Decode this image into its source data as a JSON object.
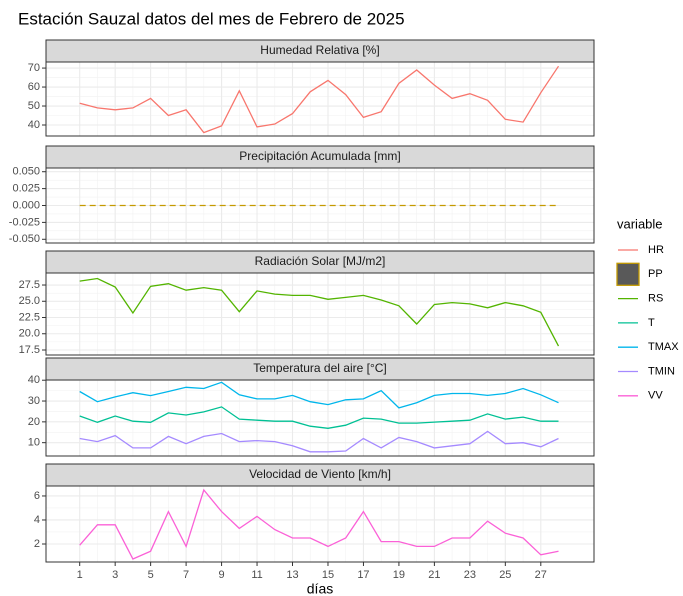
{
  "title": "Estación Sauzal datos del mes de Febrero de 2025",
  "legend_title": "variable",
  "chart_data": [
    {
      "type": "line",
      "title": "Humedad Relativa [%]",
      "x": [
        1,
        2,
        3,
        4,
        5,
        6,
        7,
        8,
        9,
        10,
        11,
        12,
        13,
        14,
        15,
        16,
        17,
        18,
        19,
        20,
        21,
        22,
        23,
        24,
        25,
        26,
        27,
        28
      ],
      "xlim": [
        -0.9,
        30
      ],
      "xticks": [
        1,
        3,
        5,
        7,
        9,
        11,
        13,
        15,
        17,
        19,
        21,
        23,
        25,
        27
      ],
      "ylim": [
        34.2,
        73.2
      ],
      "yticks": [
        40,
        50,
        60,
        70
      ],
      "grid": true,
      "series": [
        {
          "name": "HR",
          "color": "#F8766D",
          "values": [
            51.5,
            49,
            48,
            49,
            54,
            45,
            48,
            36,
            39.5,
            58,
            39,
            40.5,
            46,
            57.5,
            63.5,
            56,
            44,
            47,
            62,
            69,
            61,
            54,
            56.5,
            53,
            43,
            41.5,
            57,
            71
          ]
        }
      ]
    },
    {
      "type": "line",
      "title": "Precipitación Acumulada [mm]",
      "x": [
        1,
        2,
        3,
        4,
        5,
        6,
        7,
        8,
        9,
        10,
        11,
        12,
        13,
        14,
        15,
        16,
        17,
        18,
        19,
        20,
        21,
        22,
        23,
        24,
        25,
        26,
        27,
        28
      ],
      "xlim": [
        -0.9,
        30
      ],
      "xticks": [
        1,
        3,
        5,
        7,
        9,
        11,
        13,
        15,
        17,
        19,
        21,
        23,
        25,
        27
      ],
      "ylim": [
        -0.0555,
        0.0555
      ],
      "yticks": [
        {
          "value": -0.05,
          "label": "-0.050"
        },
        {
          "value": -0.025,
          "label": "-0.025"
        },
        {
          "value": 0,
          "label": "0.000"
        },
        {
          "value": 0.025,
          "label": "0.025"
        },
        {
          "value": 0.05,
          "label": "0.050"
        }
      ],
      "grid": true,
      "series": [
        {
          "name": "PP",
          "color": "#C49A00",
          "fill": "#595959",
          "linestyle": "dashed",
          "values": [
            0,
            0,
            0,
            0,
            0,
            0,
            0,
            0,
            0,
            0,
            0,
            0,
            0,
            0,
            0,
            0,
            0,
            0,
            0,
            0,
            0,
            0,
            0,
            0,
            0,
            0,
            0,
            0
          ]
        }
      ]
    },
    {
      "type": "line",
      "title": "Radiación Solar [MJ/m2]",
      "x": [
        1,
        2,
        3,
        4,
        5,
        6,
        7,
        8,
        9,
        10,
        11,
        12,
        13,
        14,
        15,
        16,
        17,
        18,
        19,
        20,
        21,
        22,
        23,
        24,
        25,
        26,
        27,
        28
      ],
      "xlim": [
        -0.9,
        30
      ],
      "xticks": [
        1,
        3,
        5,
        7,
        9,
        11,
        13,
        15,
        17,
        19,
        21,
        23,
        25,
        27
      ],
      "ylim": [
        16.73,
        29.35
      ],
      "yticks": [
        17.5,
        {
          "value": 20,
          "label": "20.0"
        },
        22.5,
        {
          "value": 25,
          "label": "25.0"
        },
        27.5
      ],
      "grid": true,
      "series": [
        {
          "name": "RS",
          "color": "#53B400",
          "values": [
            28.1,
            28.5,
            27.2,
            23.2,
            27.3,
            27.7,
            26.7,
            27.1,
            26.7,
            23.4,
            26.6,
            26.1,
            25.9,
            25.9,
            25.3,
            25.6,
            25.9,
            25.2,
            24.3,
            21.5,
            24.5,
            24.8,
            24.6,
            24.0,
            24.8,
            24.3,
            23.3,
            18.1
          ]
        }
      ]
    },
    {
      "type": "line",
      "title": "Temperatura del aire [°C]",
      "x": [
        1,
        2,
        3,
        4,
        5,
        6,
        7,
        8,
        9,
        10,
        11,
        12,
        13,
        14,
        15,
        16,
        17,
        18,
        19,
        20,
        21,
        22,
        23,
        24,
        25,
        26,
        27,
        28
      ],
      "xlim": [
        -0.9,
        30
      ],
      "xticks": [
        1,
        3,
        5,
        7,
        9,
        11,
        13,
        15,
        17,
        19,
        21,
        23,
        25,
        27
      ],
      "ylim": [
        3.6,
        40.1
      ],
      "yticks": [
        10,
        20,
        30,
        40
      ],
      "grid": true,
      "series": [
        {
          "name": "T",
          "color": "#00C094",
          "values": [
            22.8,
            19.8,
            22.8,
            20.3,
            19.8,
            24.3,
            23.3,
            24.8,
            27.2,
            21.3,
            20.8,
            20.3,
            20.3,
            17.9,
            16.9,
            18.4,
            21.8,
            21.3,
            19.4,
            19.4,
            19.9,
            20.3,
            20.8,
            23.8,
            21.3,
            22.3,
            20.3,
            20.3
          ]
        },
        {
          "name": "TMAX",
          "color": "#00B6EB",
          "values": [
            34.6,
            29.7,
            32,
            34,
            32.6,
            34.6,
            36.6,
            36,
            39,
            33,
            31,
            31,
            32.7,
            29.7,
            28.3,
            30.6,
            31,
            35,
            26.7,
            29.2,
            32.7,
            33.6,
            33.6,
            32.7,
            33.6,
            36,
            33,
            29.2
          ]
        },
        {
          "name": "TMIN",
          "color": "#A58AFF",
          "values": [
            12,
            10.5,
            13.4,
            7.5,
            7.5,
            13,
            9.5,
            13,
            14.4,
            10.5,
            11,
            10.5,
            8.5,
            5.6,
            5.6,
            6,
            12,
            7.5,
            12.5,
            10.5,
            7.5,
            8.5,
            9.5,
            15.4,
            9.5,
            10,
            8,
            12
          ]
        }
      ]
    },
    {
      "type": "line",
      "title": "Velocidad de Viento [km/h]",
      "x": [
        1,
        2,
        3,
        4,
        5,
        6,
        7,
        8,
        9,
        10,
        11,
        12,
        13,
        14,
        15,
        16,
        17,
        18,
        19,
        20,
        21,
        22,
        23,
        24,
        25,
        26,
        27,
        28
      ],
      "xlim": [
        -0.9,
        30
      ],
      "xticks": [
        1,
        3,
        5,
        7,
        9,
        11,
        13,
        15,
        17,
        19,
        21,
        23,
        25,
        27
      ],
      "xlabel": "días",
      "ylim": [
        0.5,
        6.83
      ],
      "yticks": [
        2,
        4,
        6
      ],
      "grid": true,
      "series": [
        {
          "name": "VV",
          "color": "#FB61D7",
          "values": [
            1.9,
            3.6,
            3.6,
            0.75,
            1.4,
            4.7,
            1.8,
            6.5,
            4.7,
            3.3,
            4.3,
            3.2,
            2.5,
            2.5,
            1.8,
            2.5,
            4.7,
            2.2,
            2.2,
            1.8,
            1.8,
            2.5,
            2.5,
            3.9,
            2.9,
            2.5,
            1.1,
            1.4
          ]
        }
      ]
    }
  ]
}
